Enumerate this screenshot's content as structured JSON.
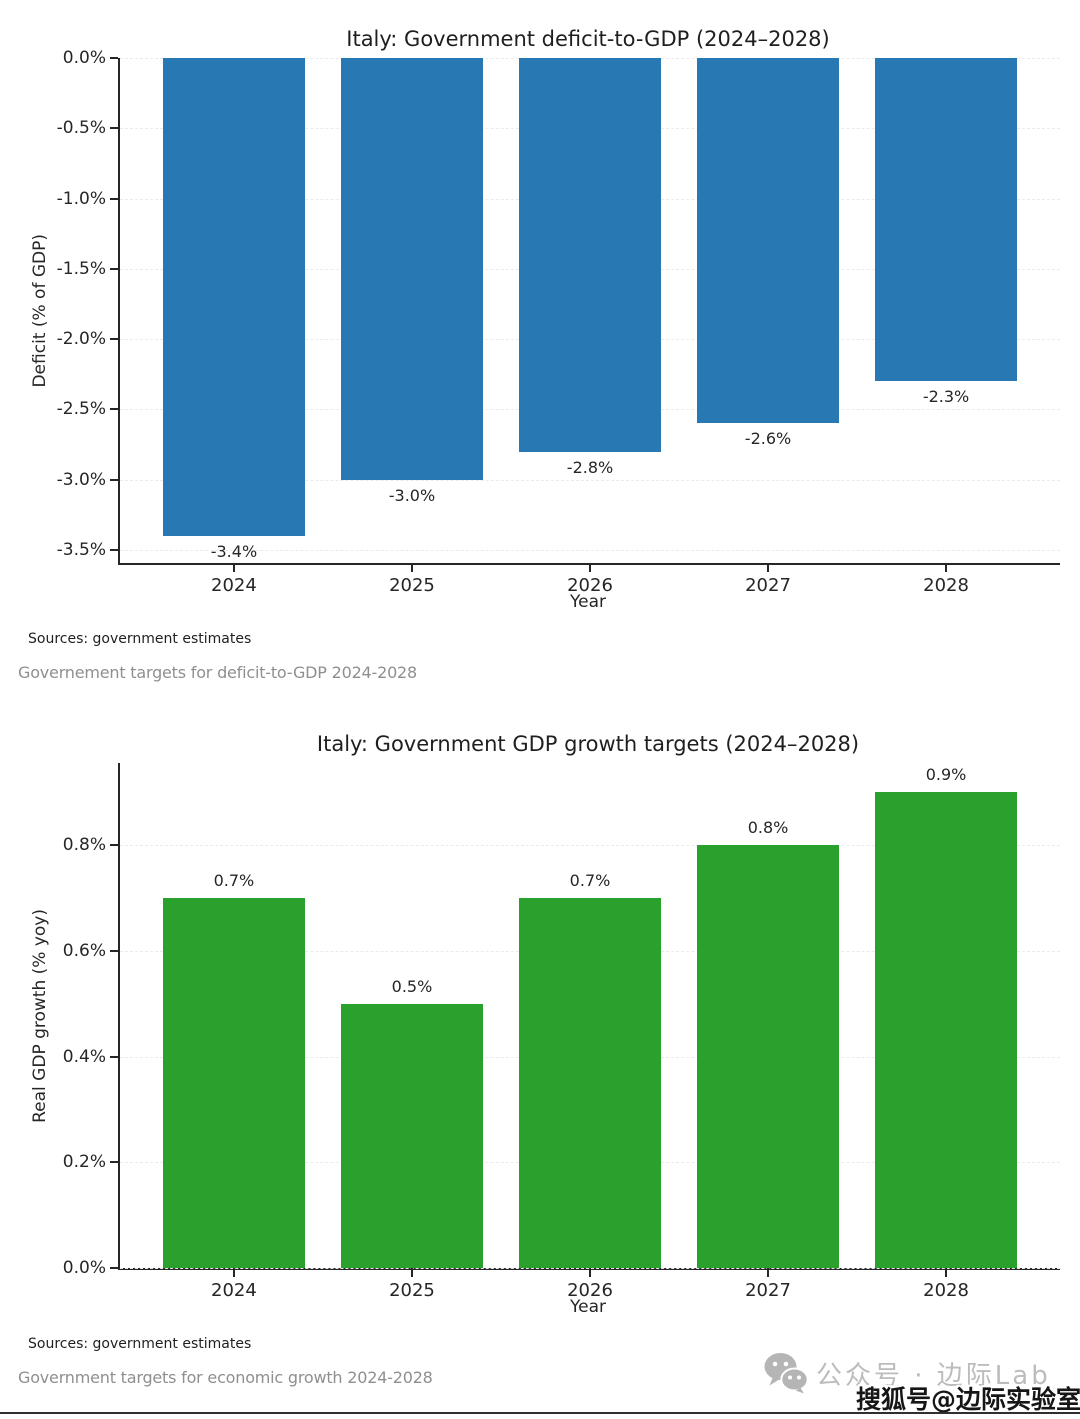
{
  "page": {
    "background": "#ffffff",
    "bottom_rule_color": "#2f2f2f"
  },
  "chart_data": [
    {
      "type": "bar",
      "title": "Italy: Government deficit-to-GDP (2024–2028)",
      "xlabel": "Year",
      "ylabel": "Deficit (% of GDP)",
      "categories": [
        "2024",
        "2025",
        "2026",
        "2027",
        "2028"
      ],
      "values": [
        -3.4,
        -3.0,
        -2.8,
        -2.6,
        -2.3
      ],
      "value_labels": [
        "-3.4%",
        "-3.0%",
        "-2.8%",
        "-2.6%",
        "-2.3%"
      ],
      "bar_color": "#2878b4",
      "ylim": [
        -3.5,
        0
      ],
      "yticks": [
        0,
        -0.5,
        -1.0,
        -1.5,
        -2.0,
        -2.5,
        -3.0,
        -3.5
      ],
      "ytick_labels": [
        "0.0%",
        "-0.5%",
        "-1.0%",
        "-1.5%",
        "-2.0%",
        "-2.5%",
        "-3.0%",
        "-3.5%"
      ],
      "grid": true,
      "legend": "none",
      "source_note": "Sources: government estimates",
      "caption": "Governement targets for deficit-to-GDP 2024-2028"
    },
    {
      "type": "bar",
      "title": "Italy: Government GDP growth targets (2024–2028)",
      "xlabel": "Year",
      "ylabel": "Real GDP growth (% yoy)",
      "categories": [
        "2024",
        "2025",
        "2026",
        "2027",
        "2028"
      ],
      "values": [
        0.7,
        0.5,
        0.7,
        0.8,
        0.9
      ],
      "value_labels": [
        "0.7%",
        "0.5%",
        "0.7%",
        "0.8%",
        "0.9%"
      ],
      "bar_color": "#2aa12c",
      "ylim": [
        0,
        0.95
      ],
      "yticks": [
        0,
        0.2,
        0.4,
        0.6,
        0.8
      ],
      "ytick_labels": [
        "0.0%",
        "0.2%",
        "0.4%",
        "0.6%",
        "0.8%"
      ],
      "grid": true,
      "legend": "none",
      "source_note": "Sources: government estimates",
      "caption": "Government targets for economic growth 2024-2028"
    }
  ],
  "watermark": {
    "icon": "wechat-icon",
    "icon_color": "#b5b5b5",
    "account_label": "公众号 · 边际Lab",
    "sohu_label": "搜狐号@边际实验室"
  }
}
